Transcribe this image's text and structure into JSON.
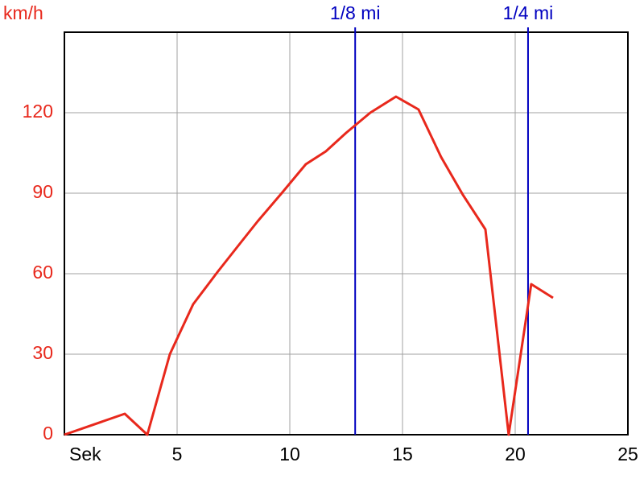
{
  "chart_data": {
    "type": "line",
    "y_label": "km/h",
    "x": [
      0,
      2.68,
      3.68,
      4.68,
      5.71,
      6.79,
      7.86,
      8.57,
      9.64,
      10.71,
      11.6,
      12.5,
      13.57,
      14.71,
      15.71,
      16.71,
      17.68,
      18.68,
      19.71,
      20.71,
      21.68
    ],
    "values": [
      0,
      7.8,
      0,
      30,
      48.6,
      60.6,
      72,
      79.5,
      90,
      100.8,
      105.6,
      112.5,
      120,
      126,
      121.2,
      103.5,
      89.4,
      76.5,
      0,
      56.1,
      51
    ],
    "color": "#e8281c",
    "xlim": [
      0,
      25
    ],
    "xticks": [
      {
        "value": 0,
        "label": "Sek"
      },
      5,
      10,
      15,
      20,
      25
    ],
    "ylim": [
      0,
      150
    ],
    "yticks": [
      0,
      30,
      60,
      90,
      120
    ],
    "grid": true,
    "annotations": [
      {
        "text": "1/8 mi",
        "x": 12.9,
        "color": "#0000c0"
      },
      {
        "text": "1/4 mi",
        "x": 20.57,
        "color": "#0000c0"
      }
    ]
  }
}
